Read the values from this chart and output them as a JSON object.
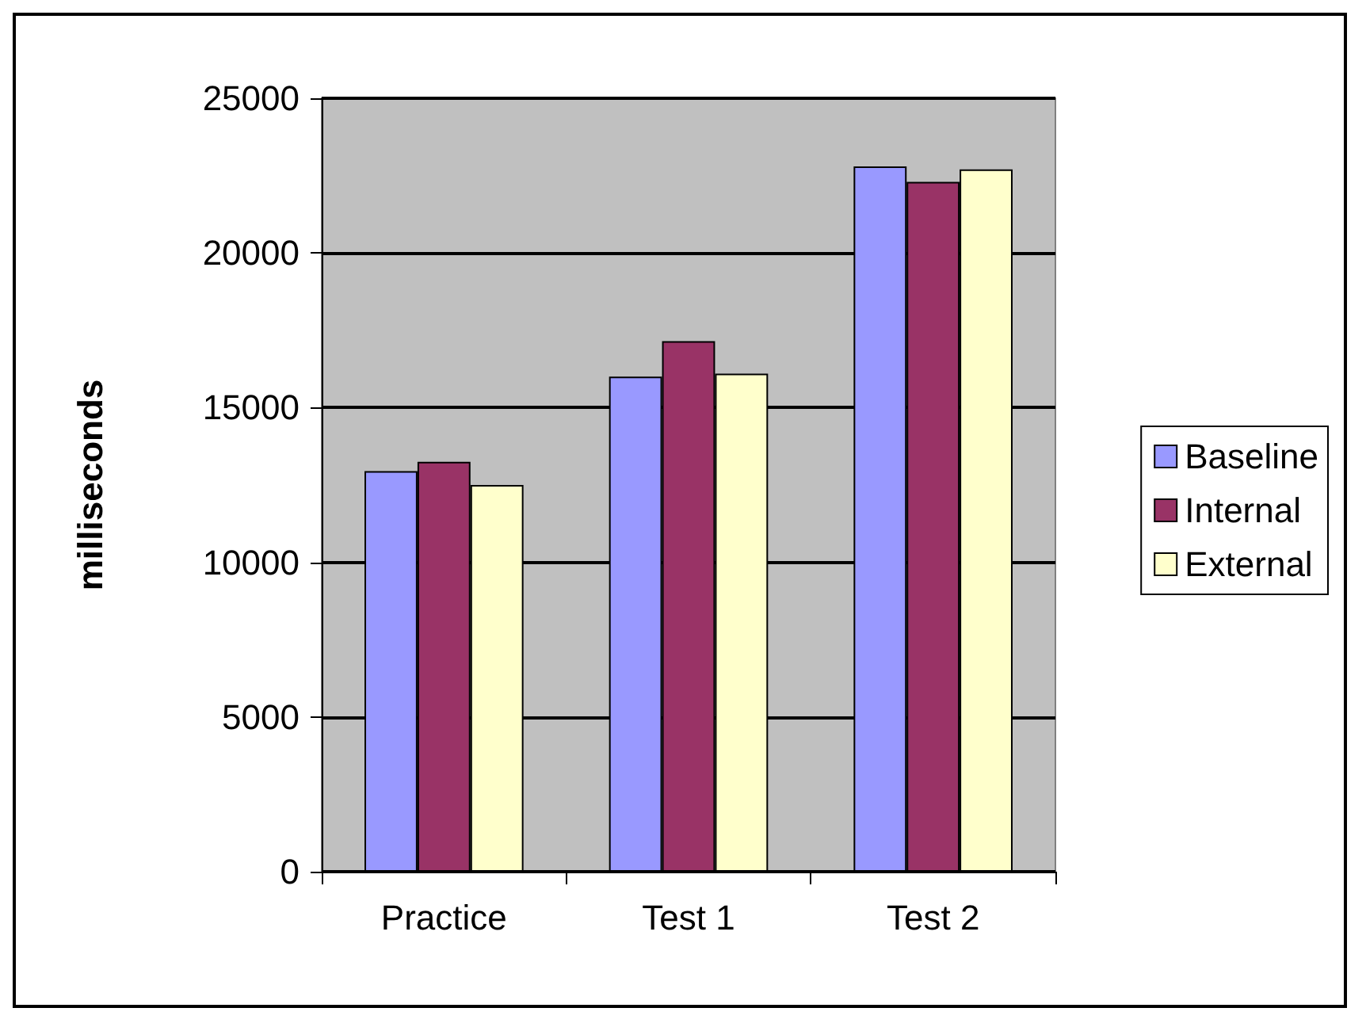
{
  "chart_data": {
    "type": "bar",
    "ylabel": "milliseconds",
    "categories": [
      "Practice",
      "Test 1",
      "Test 2"
    ],
    "series": [
      {
        "name": "Baseline",
        "color": "#9999ff",
        "values": [
          12950,
          16000,
          22800
        ]
      },
      {
        "name": "Internal",
        "color": "#993366",
        "values": [
          13250,
          17150,
          22300
        ]
      },
      {
        "name": "External",
        "color": "#ffffcc",
        "values": [
          12500,
          16100,
          22700
        ]
      }
    ],
    "ylim": [
      0,
      25000
    ],
    "yticks": [
      0,
      5000,
      10000,
      15000,
      20000,
      25000
    ],
    "grid": "y",
    "legend": "right"
  }
}
